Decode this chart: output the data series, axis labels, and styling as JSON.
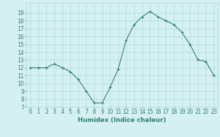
{
  "x": [
    0,
    1,
    2,
    3,
    4,
    5,
    6,
    7,
    8,
    9,
    10,
    11,
    12,
    13,
    14,
    15,
    16,
    17,
    18,
    19,
    20,
    21,
    22,
    23
  ],
  "y": [
    12,
    12,
    12,
    12.5,
    12,
    11.5,
    10.5,
    9,
    7.5,
    7.5,
    9.5,
    11.8,
    15.5,
    17.5,
    18.5,
    19.2,
    18.5,
    18,
    17.5,
    16.5,
    15,
    13,
    12.8,
    11
  ],
  "line_color": "#2e7d6e",
  "marker": "+",
  "marker_size": 3,
  "bg_color": "#d4f0f0",
  "grid_color": "#b0d8d8",
  "xlabel": "Humidex (Indice chaleur)",
  "ylim": [
    7,
    20
  ],
  "xlim": [
    -0.5,
    23.5
  ],
  "yticks": [
    7,
    8,
    9,
    10,
    11,
    12,
    13,
    14,
    15,
    16,
    17,
    18,
    19
  ],
  "xticks": [
    0,
    1,
    2,
    3,
    4,
    5,
    6,
    7,
    8,
    9,
    10,
    11,
    12,
    13,
    14,
    15,
    16,
    17,
    18,
    19,
    20,
    21,
    22,
    23
  ],
  "tick_color": "#2e7d6e",
  "label_color": "#2e7d6e",
  "font_size": 5.5,
  "xlabel_fontsize": 6.5
}
